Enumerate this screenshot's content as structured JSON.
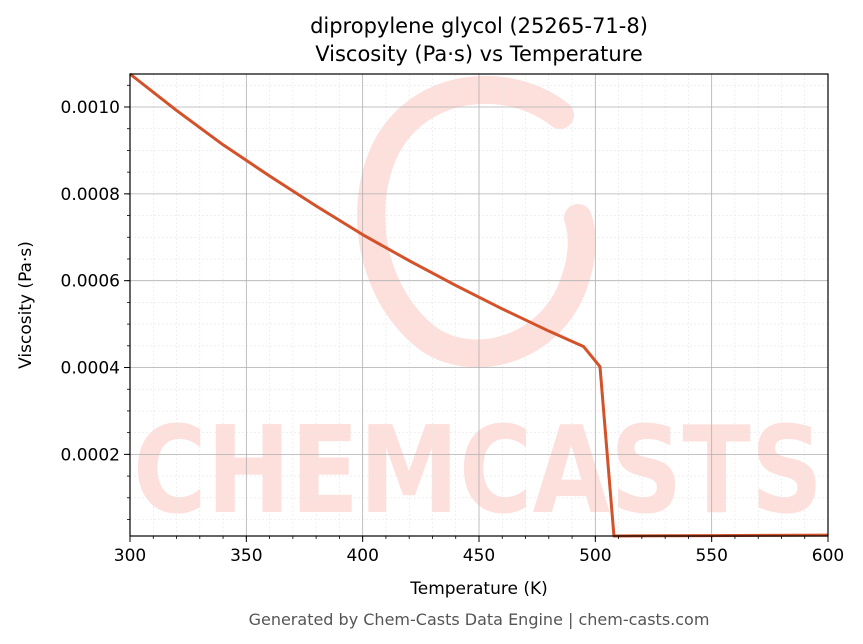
{
  "chart_data": {
    "type": "line",
    "title": "dipropylene glycol (25265-71-8)",
    "subtitle": "Viscosity (Pa·s) vs Temperature",
    "xlabel": "Temperature (K)",
    "ylabel": "Viscosity (Pa·s)",
    "xlim": [
      300,
      600
    ],
    "ylim": [
      1.2e-05,
      0.001076
    ],
    "x_ticks": [
      300,
      350,
      400,
      450,
      500,
      550,
      600
    ],
    "x_tick_labels": [
      "300",
      "350",
      "400",
      "450",
      "500",
      "550",
      "600"
    ],
    "y_ticks": [
      0.0002,
      0.0004,
      0.0006,
      0.0008,
      0.001
    ],
    "y_tick_labels": [
      "0.0002",
      "0.0004",
      "0.0006",
      "0.0008",
      "0.0010"
    ],
    "grid": true,
    "series": [
      {
        "color": "#d4522a",
        "x": [
          300,
          320,
          340,
          360,
          380,
          400,
          420,
          440,
          460,
          480,
          495,
          502,
          508,
          510,
          550,
          600
        ],
        "y": [
          0.001076,
          0.000992,
          0.000913,
          0.000841,
          0.000772,
          0.000706,
          0.000646,
          0.000589,
          0.000535,
          0.000484,
          0.000448,
          0.000402,
          1.2e-05,
          1.2e-05,
          1.3e-05,
          1.4e-05
        ]
      }
    ]
  },
  "watermark": {
    "text": "CHEMCASTS",
    "color": "#fde0dc"
  },
  "footer": "Generated by Chem-Casts Data Engine | chem-casts.com"
}
